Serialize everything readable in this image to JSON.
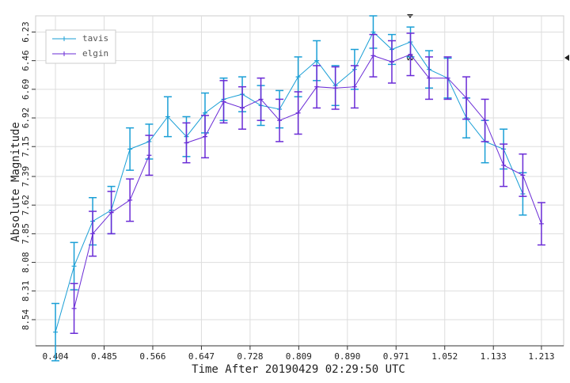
{
  "chart_data": {
    "type": "line",
    "x_label": "Time After 20190429 02:29:50 UTC",
    "y_label": "Absolute Magnitude",
    "x": [
      0.404,
      0.435,
      0.466,
      0.497,
      0.528,
      0.56,
      0.591,
      0.622,
      0.653,
      0.684,
      0.715,
      0.746,
      0.777,
      0.808,
      0.839,
      0.87,
      0.902,
      0.933,
      0.964,
      0.995,
      1.026,
      1.057,
      1.088,
      1.119,
      1.15,
      1.182,
      1.213
    ],
    "series": [
      {
        "name": "tavis",
        "color": "#1a9fd6",
        "values": [
          8.64,
          8.11,
          7.75,
          7.66,
          7.17,
          7.11,
          6.91,
          7.07,
          6.88,
          6.77,
          6.73,
          6.82,
          6.85,
          6.59,
          6.46,
          6.66,
          6.53,
          6.23,
          6.37,
          6.31,
          6.53,
          6.6,
          6.92,
          7.11,
          7.17,
          7.53,
          null
        ],
        "errors": [
          0.23,
          0.19,
          0.19,
          0.19,
          0.17,
          0.14,
          0.16,
          0.16,
          0.16,
          0.17,
          0.14,
          0.16,
          0.15,
          0.16,
          0.16,
          0.16,
          0.16,
          0.13,
          0.12,
          0.12,
          0.15,
          0.16,
          0.16,
          0.17,
          0.16,
          0.17,
          null
        ]
      },
      {
        "name": "elgin",
        "color": "#6a2bd6",
        "values": [
          null,
          8.45,
          7.85,
          7.68,
          7.58,
          7.22,
          null,
          7.12,
          7.07,
          6.79,
          6.84,
          6.77,
          6.94,
          6.88,
          6.67,
          6.68,
          6.67,
          6.42,
          6.47,
          6.41,
          6.6,
          6.6,
          6.76,
          6.94,
          7.3,
          7.38,
          7.77
        ],
        "errors": [
          null,
          0.2,
          0.18,
          0.17,
          0.17,
          0.16,
          null,
          0.16,
          0.17,
          0.17,
          0.17,
          0.17,
          0.17,
          0.17,
          0.17,
          0.17,
          0.17,
          0.17,
          0.17,
          0.17,
          0.17,
          0.17,
          0.17,
          0.17,
          0.17,
          0.17,
          0.17
        ]
      }
    ],
    "xlim": [
      0.371,
      1.25
    ],
    "ylim": [
      8.75,
      6.1
    ],
    "xticks": [
      0.404,
      0.485,
      0.566,
      0.647,
      0.728,
      0.809,
      {
        "value": 0.89,
        "label": "0.890"
      },
      0.971,
      1.052,
      1.133,
      1.213
    ],
    "yticks": [
      6.23,
      6.46,
      6.69,
      6.92,
      7.15,
      7.39,
      7.62,
      7.85,
      8.08,
      8.31,
      8.54
    ],
    "grid": true,
    "legend": "upper left"
  }
}
